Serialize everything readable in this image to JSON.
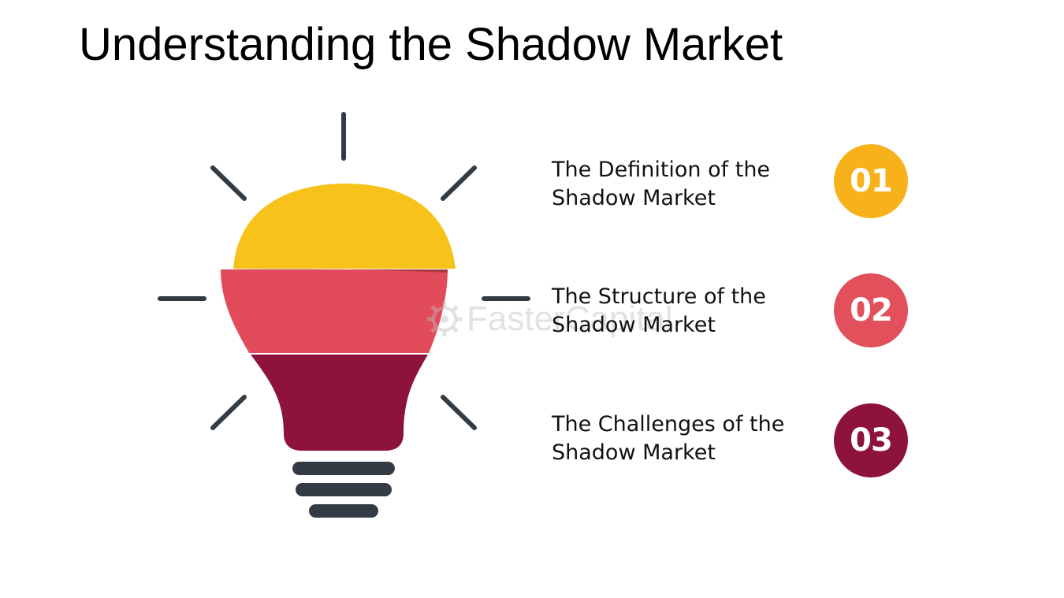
{
  "title": "Understanding the Shadow Market",
  "items": [
    {
      "number": "01",
      "line1": "The Definition of the",
      "line2": "Shadow Market",
      "color": "#F7B21B"
    },
    {
      "number": "02",
      "line1": "The Structure of the",
      "line2": "Shadow Market",
      "color": "#E2505C"
    },
    {
      "number": "03",
      "line1": "The Challenges of the",
      "line2": "Shadow Market",
      "color": "#8E133B"
    }
  ],
  "bulb": {
    "top_color": "#F7C21A",
    "middle_color": "#E24C5A",
    "bottom_color": "#8E133B",
    "base_color": "#333C44",
    "ray_color": "#333C44"
  },
  "watermark": {
    "text": "FasterCapital",
    "icon": "gear-icon"
  }
}
